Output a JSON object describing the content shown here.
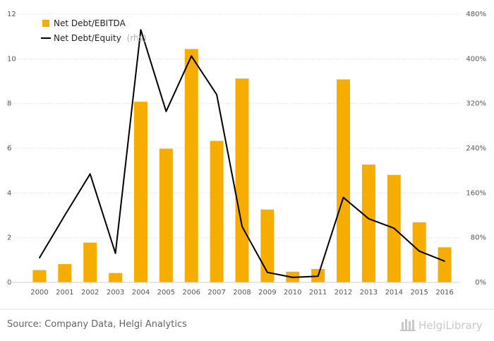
{
  "chart_data": {
    "type": "bar",
    "categories": [
      "2000",
      "2001",
      "2002",
      "2003",
      "2004",
      "2005",
      "2006",
      "2007",
      "2008",
      "2009",
      "2010",
      "2011",
      "2012",
      "2013",
      "2014",
      "2015",
      "2016"
    ],
    "series": [
      {
        "name": "Net Debt/EBITDA",
        "type": "bar",
        "axis": "left",
        "color": "#f7ad00",
        "values": [
          0.55,
          0.82,
          1.78,
          0.42,
          8.08,
          5.98,
          10.44,
          6.33,
          9.12,
          3.26,
          0.48,
          0.6,
          9.08,
          5.27,
          4.81,
          2.69,
          1.57
        ]
      },
      {
        "name": "Net Debt/Equity",
        "name_suffix": "(rhs)",
        "type": "line",
        "axis": "right",
        "color": "#000000",
        "values": [
          44,
          120,
          194,
          52,
          452,
          306,
          405,
          336,
          100,
          18,
          9,
          11,
          152,
          114,
          97,
          56,
          38
        ]
      }
    ],
    "y_left": {
      "min": 0,
      "max": 12,
      "ticks": [
        0,
        2,
        4,
        6,
        8,
        10,
        12
      ]
    },
    "y_right": {
      "min": 0,
      "max": 480,
      "ticks": [
        "0%",
        "80%",
        "160%",
        "240%",
        "320%",
        "400%",
        "480%"
      ],
      "tick_values": [
        0,
        80,
        160,
        240,
        320,
        400,
        480
      ]
    },
    "legend_position": "top-left",
    "grid": "horizontal dotted"
  },
  "footer": {
    "source": "Source: Company Data, Helgi Analytics",
    "logo": "HelgiLibrary"
  },
  "colors": {
    "bar": "#f7ad00",
    "line": "#000000",
    "grid": "#d9d9d9"
  }
}
